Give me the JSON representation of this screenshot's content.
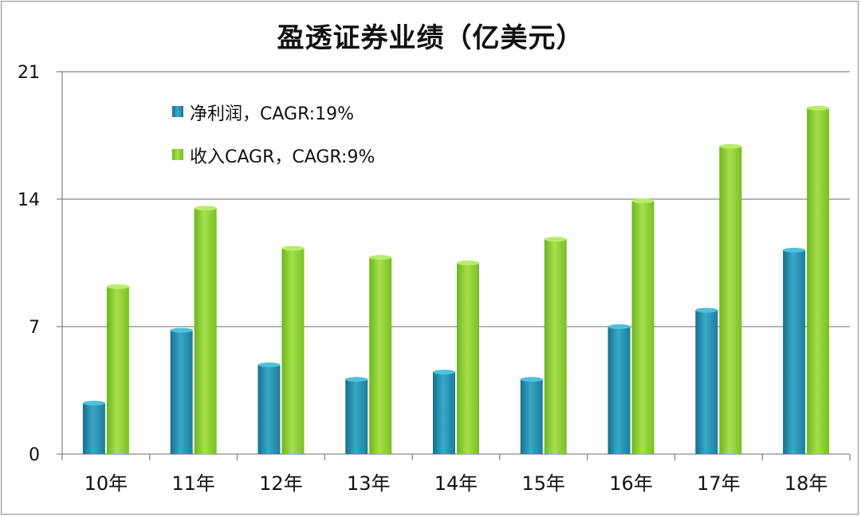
{
  "chart_data": {
    "type": "bar",
    "title": "盈透证券业绩（亿美元）",
    "categories": [
      "10年",
      "11年",
      "12年",
      "13年",
      "14年",
      "15年",
      "16年",
      "17年",
      "18年"
    ],
    "series": [
      {
        "name": "净利润，CAGR:19%",
        "values": [
          2.8,
          6.8,
          4.9,
          4.1,
          4.5,
          4.1,
          7.0,
          7.9,
          11.2
        ],
        "color": "#2a8fb0"
      },
      {
        "name": "收入CAGR，CAGR:9%",
        "values": [
          9.2,
          13.5,
          11.3,
          10.8,
          10.5,
          11.8,
          13.9,
          16.9,
          19.0
        ],
        "color": "#8ecf34"
      }
    ],
    "y_ticks": [
      "0",
      "7",
      "14",
      "21"
    ],
    "ylim": [
      0,
      21
    ],
    "grid": true,
    "legend_position": "top-left"
  }
}
